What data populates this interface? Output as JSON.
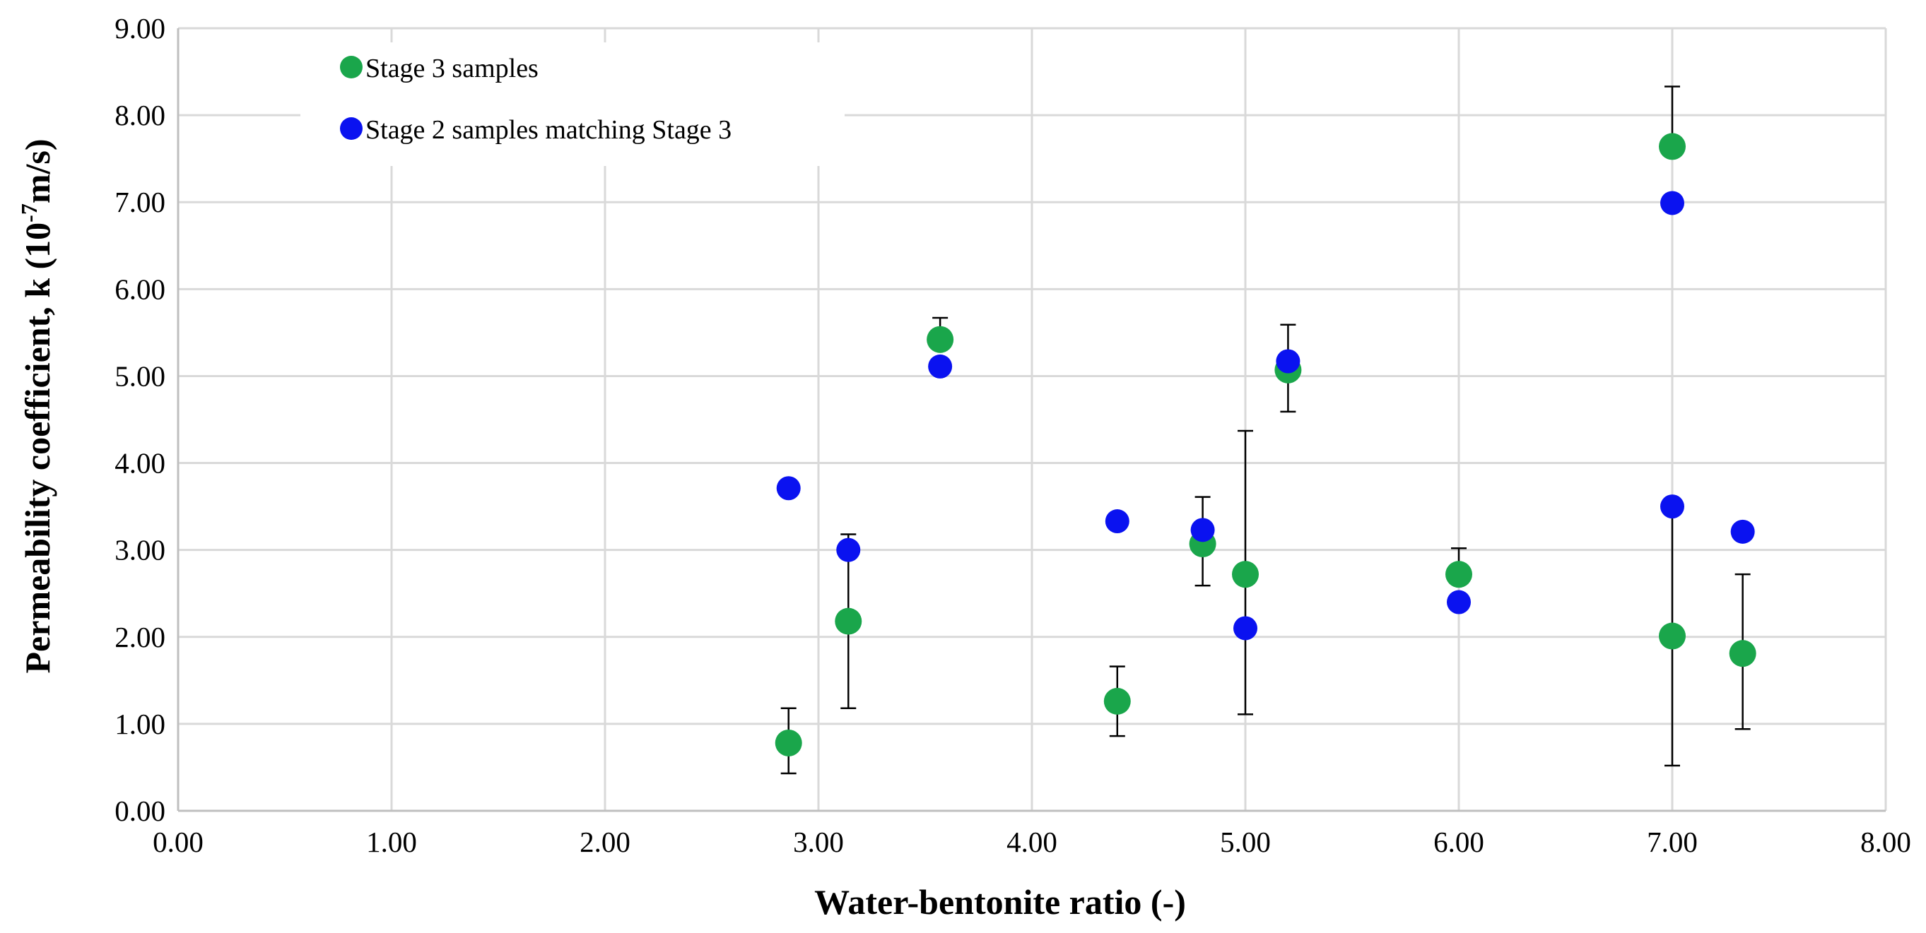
{
  "chart_data": {
    "type": "scatter",
    "title": "",
    "xlabel": "Water-bentonite ratio (-)",
    "ylabel_parts": [
      "Permeability coefficient, k (10",
      "-7",
      "m/s)"
    ],
    "xlim": [
      0,
      8
    ],
    "ylim": [
      0,
      9
    ],
    "x_ticks": [
      "0.00",
      "1.00",
      "2.00",
      "3.00",
      "4.00",
      "5.00",
      "6.00",
      "7.00",
      "8.00"
    ],
    "y_ticks": [
      "0.00",
      "1.00",
      "2.00",
      "3.00",
      "4.00",
      "5.00",
      "6.00",
      "7.00",
      "8.00",
      "9.00"
    ],
    "grid": true,
    "legend_position": "top-left",
    "series": [
      {
        "name": "Stage 3 samples",
        "color": "#1aa64b",
        "points": [
          {
            "x": 2.86,
            "y": 0.78,
            "err_low": 0.43,
            "err_high": 1.18
          },
          {
            "x": 3.14,
            "y": 2.18,
            "err_low": 1.18,
            "err_high": 3.18
          },
          {
            "x": 3.57,
            "y": 5.42,
            "err_low": 5.42,
            "err_high": 5.67
          },
          {
            "x": 4.4,
            "y": 1.26,
            "err_low": 0.86,
            "err_high": 1.66
          },
          {
            "x": 4.8,
            "y": 3.07,
            "err_low": 2.59,
            "err_high": 3.61
          },
          {
            "x": 5.0,
            "y": 2.72,
            "err_low": 1.11,
            "err_high": 4.37
          },
          {
            "x": 5.2,
            "y": 5.07,
            "err_low": 4.59,
            "err_high": 5.59
          },
          {
            "x": 6.0,
            "y": 2.72,
            "err_low": 2.72,
            "err_high": 3.02
          },
          {
            "x": 7.0,
            "y": 7.64,
            "err_low": 7.64,
            "err_high": 8.33
          },
          {
            "x": 7.0,
            "y": 2.01,
            "err_low": 0.52,
            "err_high": 3.49
          },
          {
            "x": 7.33,
            "y": 1.81,
            "err_low": 0.94,
            "err_high": 2.72
          }
        ]
      },
      {
        "name": "Stage 2 samples matching Stage 3",
        "color": "#0a12f0",
        "points": [
          {
            "x": 2.86,
            "y": 3.71
          },
          {
            "x": 3.14,
            "y": 3.0
          },
          {
            "x": 3.57,
            "y": 5.11
          },
          {
            "x": 4.4,
            "y": 3.33
          },
          {
            "x": 4.8,
            "y": 3.23
          },
          {
            "x": 5.0,
            "y": 2.1
          },
          {
            "x": 5.2,
            "y": 5.17
          },
          {
            "x": 6.0,
            "y": 2.4
          },
          {
            "x": 7.0,
            "y": 6.99
          },
          {
            "x": 7.0,
            "y": 3.5
          },
          {
            "x": 7.33,
            "y": 3.21
          }
        ]
      }
    ]
  }
}
